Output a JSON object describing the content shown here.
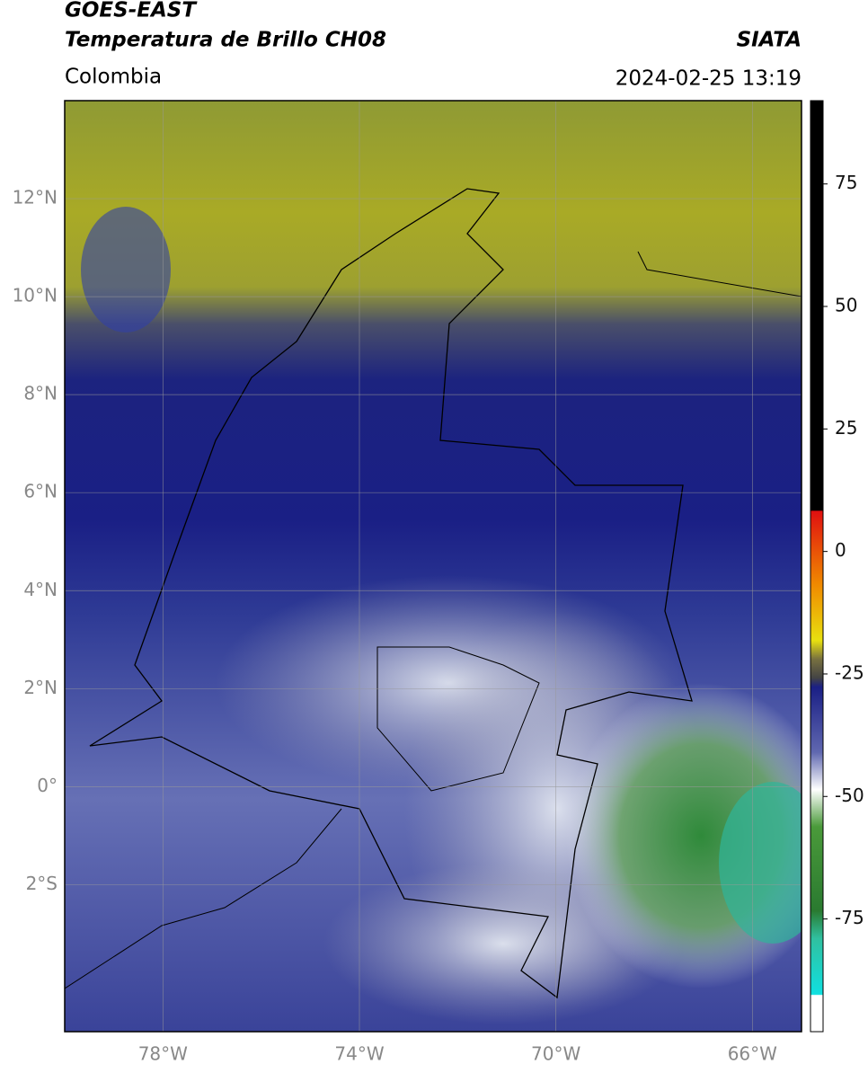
{
  "header": {
    "title": "GOES-EAST",
    "subtitle": "Temperatura de Brillo CH08",
    "region": "Colombia",
    "source": "SIATA",
    "datetime": "2024-02-25 13:19"
  },
  "map": {
    "lonlim": [
      -80,
      -65
    ],
    "latlim": [
      -5,
      14
    ],
    "lat_ticks": [
      {
        "value": 12,
        "label": "12°N"
      },
      {
        "value": 10,
        "label": "10°N"
      },
      {
        "value": 8,
        "label": "8°N"
      },
      {
        "value": 6,
        "label": "6°N"
      },
      {
        "value": 4,
        "label": "4°N"
      },
      {
        "value": 2,
        "label": "2°N"
      },
      {
        "value": 0,
        "label": "0°"
      },
      {
        "value": -2,
        "label": "2°S"
      }
    ],
    "lon_ticks": [
      {
        "value": -78,
        "label": "78°W"
      },
      {
        "value": -74,
        "label": "74°W"
      },
      {
        "value": -70,
        "label": "70°W"
      },
      {
        "value": -66,
        "label": "66°W"
      }
    ]
  },
  "colorbar": {
    "lim": [
      -98,
      92
    ],
    "ticks": [
      75,
      50,
      25,
      0,
      -25,
      -50,
      -75
    ]
  }
}
